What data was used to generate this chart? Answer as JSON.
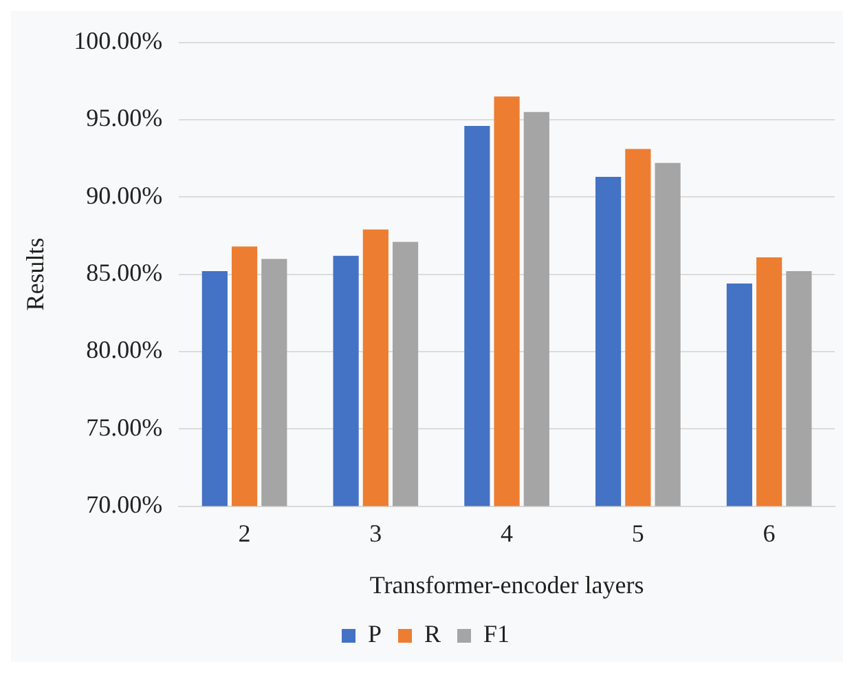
{
  "chart_data": {
    "type": "bar",
    "xlabel": "Transformer-encoder layers",
    "ylabel": "Results",
    "categories": [
      "2",
      "3",
      "4",
      "5",
      "6"
    ],
    "series": [
      {
        "name": "P",
        "color": "#4472c4",
        "values": [
          85.2,
          86.2,
          94.6,
          91.3,
          84.4
        ]
      },
      {
        "name": "R",
        "color": "#ed7d31",
        "values": [
          86.8,
          87.9,
          96.5,
          93.1,
          86.1
        ]
      },
      {
        "name": "F1",
        "color": "#a5a5a5",
        "values": [
          86.0,
          87.1,
          95.5,
          92.2,
          85.2
        ]
      }
    ],
    "ylim": [
      70,
      100
    ],
    "yticks": [
      {
        "value": 70,
        "label": "70.00%"
      },
      {
        "value": 75,
        "label": "75.00%"
      },
      {
        "value": 80,
        "label": "80.00%"
      },
      {
        "value": 85,
        "label": "85.00%"
      },
      {
        "value": 90,
        "label": "90.00%"
      },
      {
        "value": 95,
        "label": "95.00%"
      },
      {
        "value": 100,
        "label": "100.00%"
      }
    ],
    "grid": "y",
    "legend": "bottom"
  }
}
